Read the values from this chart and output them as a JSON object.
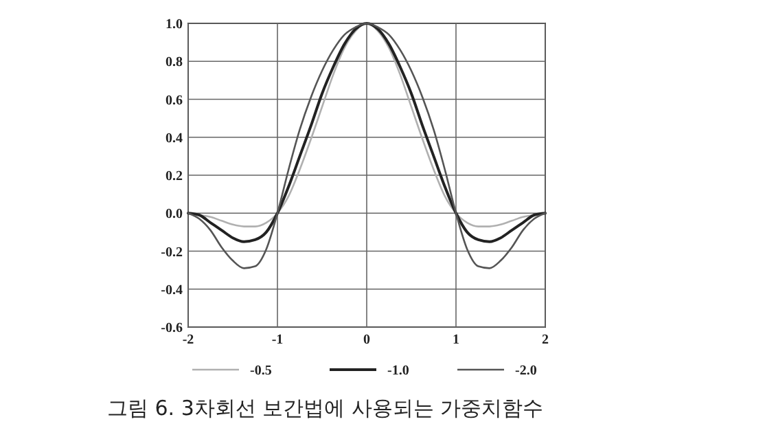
{
  "chart_data": {
    "type": "line",
    "annotations": [
      "그림 6. 3차회선 보간법에 사용되는 가중치함수"
    ],
    "x": [
      -2,
      -1.875,
      -1.75,
      -1.625,
      -1.5,
      -1.375,
      -1.25,
      -1.125,
      -1,
      -0.875,
      -0.75,
      -0.625,
      -0.5,
      -0.375,
      -0.25,
      -0.125,
      0,
      0.125,
      0.25,
      0.375,
      0.5,
      0.625,
      0.75,
      0.875,
      1,
      1.125,
      1.25,
      1.375,
      1.5,
      1.625,
      1.75,
      1.875,
      2
    ],
    "series": [
      {
        "name": "-0.5",
        "color": "#b0b0b0",
        "values": [
          0,
          -0.01,
          -0.02,
          -0.04,
          -0.06,
          -0.07,
          -0.07,
          -0.05,
          0,
          0.09,
          0.23,
          0.39,
          0.56,
          0.73,
          0.87,
          0.96,
          1,
          0.96,
          0.87,
          0.73,
          0.56,
          0.39,
          0.23,
          0.09,
          0,
          -0.05,
          -0.07,
          -0.07,
          -0.06,
          -0.04,
          -0.02,
          -0.01,
          0
        ]
      },
      {
        "name": "-1.0",
        "color": "#222222",
        "values": [
          0,
          -0.01,
          -0.05,
          -0.09,
          -0.13,
          -0.15,
          -0.14,
          -0.1,
          0,
          0.14,
          0.3,
          0.46,
          0.63,
          0.77,
          0.89,
          0.97,
          1,
          0.97,
          0.89,
          0.77,
          0.63,
          0.46,
          0.3,
          0.14,
          0,
          -0.1,
          -0.14,
          -0.15,
          -0.13,
          -0.09,
          -0.05,
          -0.01,
          0
        ]
      },
      {
        "name": "-2.0",
        "color": "#555555",
        "values": [
          0,
          -0.03,
          -0.09,
          -0.18,
          -0.25,
          -0.29,
          -0.28,
          -0.19,
          0,
          0.23,
          0.44,
          0.61,
          0.75,
          0.86,
          0.94,
          0.98,
          1,
          0.98,
          0.94,
          0.86,
          0.75,
          0.61,
          0.44,
          0.23,
          0,
          -0.19,
          -0.28,
          -0.29,
          -0.25,
          -0.18,
          -0.09,
          -0.03,
          0
        ]
      }
    ],
    "xlim": [
      -2,
      2
    ],
    "xticks": [
      -2,
      -1,
      0,
      1,
      2
    ],
    "ylim": [
      -0.6,
      1
    ],
    "yticks": [
      {
        "value": -0.6,
        "label": "-0.6"
      },
      -0.4,
      -0.2,
      {
        "value": 0,
        "label": "0.0"
      },
      0.2,
      0.4,
      0.6,
      0.8,
      {
        "value": 1,
        "label": "1.0"
      }
    ],
    "grid": true,
    "legend": "bottom",
    "marker": "none",
    "line_style": "solid"
  }
}
